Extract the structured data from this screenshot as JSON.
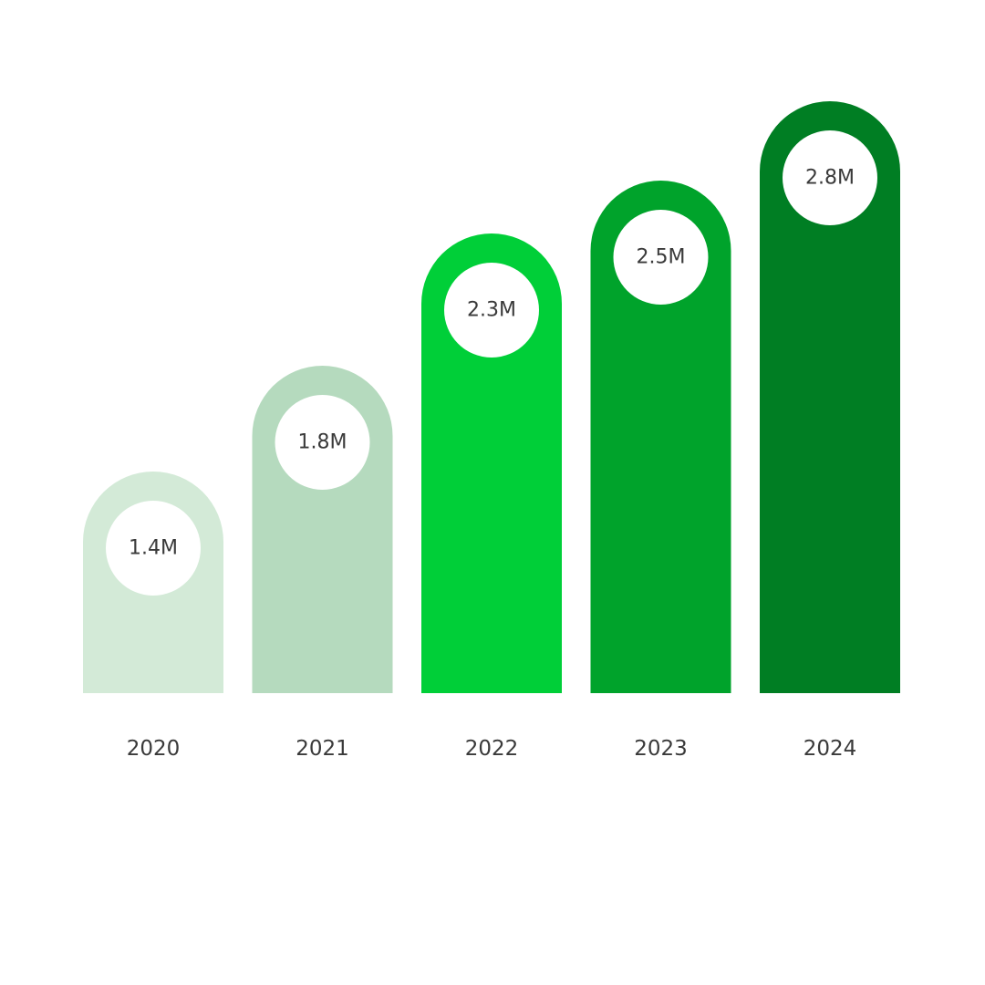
{
  "chart_data": {
    "type": "bar",
    "categories": [
      "2020",
      "2021",
      "2022",
      "2023",
      "2024"
    ],
    "values": [
      1.4,
      1.8,
      2.3,
      2.5,
      2.8
    ],
    "data_labels": [
      "1.4M",
      "1.8M",
      "2.3M",
      "2.5M",
      "2.8M"
    ],
    "unit": "M",
    "title": "",
    "xlabel": "",
    "ylabel": "",
    "grid": false,
    "legend": "none",
    "bar_colors": [
      "#d3ead7",
      "#b5dabe",
      "#00cf38",
      "#00a32b",
      "#007e23"
    ],
    "label_circle_color": "#ffffff",
    "text_color": "#3a3a3a"
  }
}
